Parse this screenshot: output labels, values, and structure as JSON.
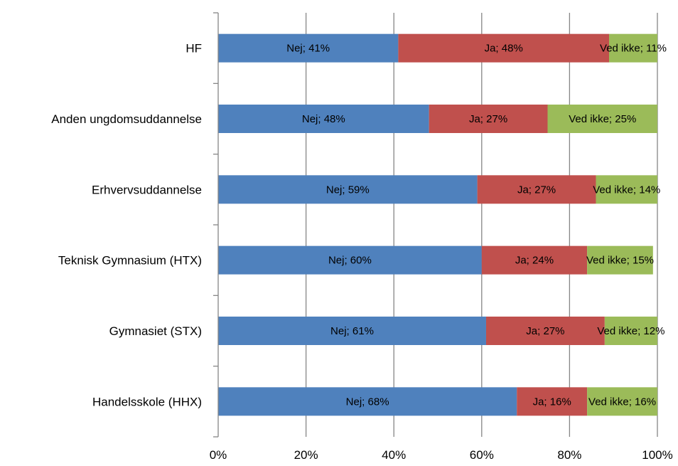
{
  "chart_data": {
    "type": "bar",
    "orientation": "horizontal",
    "stacked": "percent",
    "categories": [
      "HF",
      "Anden ungdomsuddannelse",
      "Erhvervsuddannelse",
      "Teknisk Gymnasium (HTX)",
      "Gymnasiet (STX)",
      "Handelsskole (HHX)"
    ],
    "series": [
      {
        "name": "Nej",
        "color": "#4f81bd",
        "values": [
          41,
          48,
          59,
          60,
          61,
          68
        ]
      },
      {
        "name": "Ja",
        "color": "#c0504d",
        "values": [
          48,
          27,
          27,
          24,
          27,
          16
        ]
      },
      {
        "name": "Ved ikke",
        "color": "#9bbb59",
        "values": [
          11,
          25,
          14,
          15,
          12,
          16
        ]
      }
    ],
    "data_labels": [
      [
        "Nej; 41%",
        "Ja; 48%",
        "Ved ikke; 11%"
      ],
      [
        "Nej; 48%",
        "Ja; 27%",
        "Ved ikke; 25%"
      ],
      [
        "Nej; 59%",
        "Ja; 27%",
        "Ved ikke; 14%"
      ],
      [
        "Nej; 60%",
        "Ja; 24%",
        "Ved ikke; 15%"
      ],
      [
        "Nej; 61%",
        "Ja; 27%",
        "Ved ikke; 12%"
      ],
      [
        "Nej; 68%",
        "Ja; 16%",
        "Ved ikke; 16%"
      ]
    ],
    "x_ticks": [
      "0%",
      "20%",
      "40%",
      "60%",
      "80%",
      "100%"
    ],
    "xlim": [
      0,
      100
    ],
    "grid": "vertical",
    "legend": "none",
    "title": "",
    "xlabel": "",
    "ylabel": ""
  }
}
